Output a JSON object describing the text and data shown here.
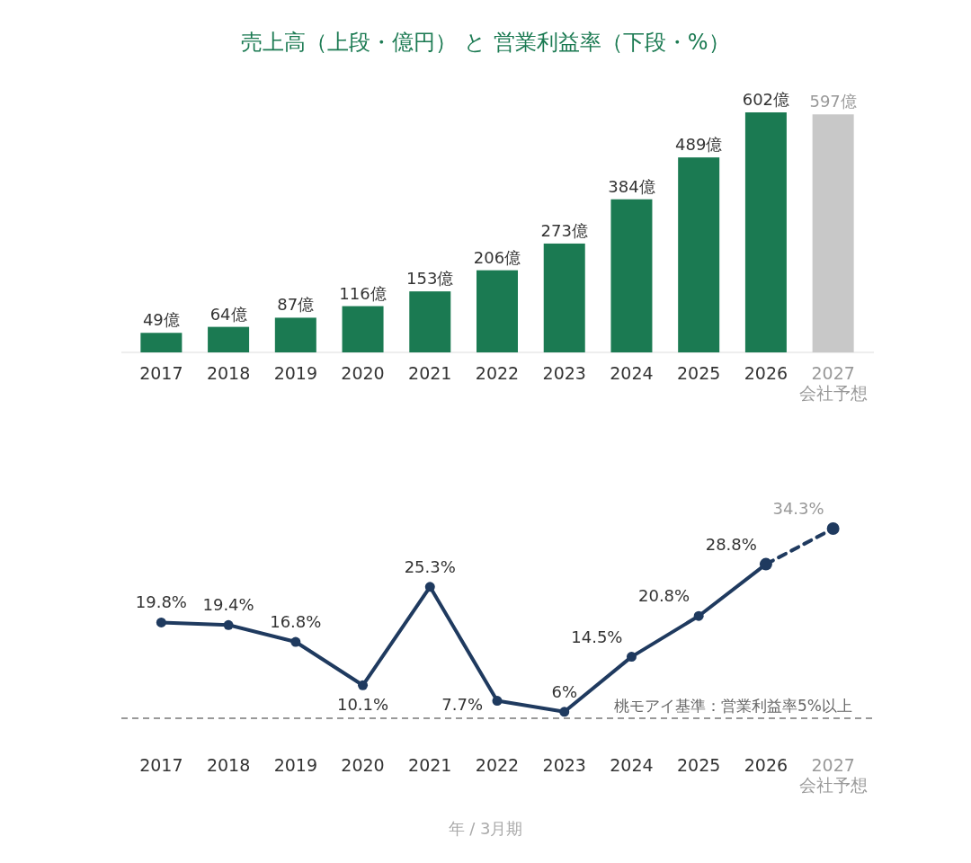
{
  "chart_data": [
    {
      "type": "bar",
      "title": "売上高（上段・億円） と 営業利益率（下段・%）",
      "categories": [
        "2017",
        "2018",
        "2019",
        "2020",
        "2021",
        "2022",
        "2023",
        "2024",
        "2025",
        "2026",
        "2027\n会社予想"
      ],
      "values": [
        49,
        64,
        87,
        116,
        153,
        206,
        273,
        384,
        489,
        602,
        597
      ],
      "value_labels": [
        "49億",
        "64億",
        "87億",
        "116億",
        "153億",
        "206億",
        "273億",
        "384億",
        "489億",
        "602億",
        "597億"
      ],
      "colors": [
        "#1b7a52",
        "#1b7a52",
        "#1b7a52",
        "#1b7a52",
        "#1b7a52",
        "#1b7a52",
        "#1b7a52",
        "#1b7a52",
        "#1b7a52",
        "#1b7a52",
        "#c8c8c8"
      ]
    },
    {
      "type": "line",
      "xlabel": "年 / 3月期",
      "categories": [
        "2017",
        "2018",
        "2019",
        "2020",
        "2021",
        "2022",
        "2023",
        "2024",
        "2025",
        "2026",
        "2027\n会社予想"
      ],
      "series": [
        {
          "color": "#1f3a5f",
          "line_style": "solid",
          "values": [
            19.8,
            19.4,
            16.8,
            10.1,
            25.3,
            7.7,
            6,
            14.5,
            20.8,
            28.8,
            null
          ],
          "value_labels": [
            "19.8%",
            "19.4%",
            "16.8%",
            "10.1%",
            "25.3%",
            "7.7%",
            "6%",
            "14.5%",
            "20.8%",
            "28.8%",
            null
          ]
        },
        {
          "color": "#1f3a5f",
          "line_style": "dashed",
          "values": [
            null,
            null,
            null,
            null,
            null,
            null,
            null,
            null,
            null,
            28.8,
            34.3
          ],
          "value_labels": [
            null,
            null,
            null,
            null,
            null,
            null,
            null,
            null,
            null,
            null,
            "34.3%"
          ]
        }
      ],
      "marker": "circle",
      "ref_lines": [
        {
          "axis": "y",
          "value": 5,
          "label": "桃モアイ基準：営業利益率5%以上",
          "color": "#999999",
          "line_style": "dashed"
        }
      ]
    }
  ]
}
